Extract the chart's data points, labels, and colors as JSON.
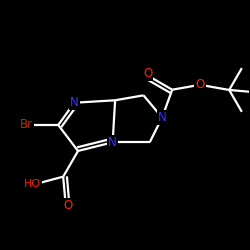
{
  "background": "#000000",
  "bond_color": "#ffffff",
  "atom_colors": {
    "N": "#3333ff",
    "O": "#ff2200",
    "Br": "#cc2200",
    "C": "#ffffff"
  },
  "figsize": [
    2.5,
    2.5
  ],
  "dpi": 100,
  "scale": 0.085
}
